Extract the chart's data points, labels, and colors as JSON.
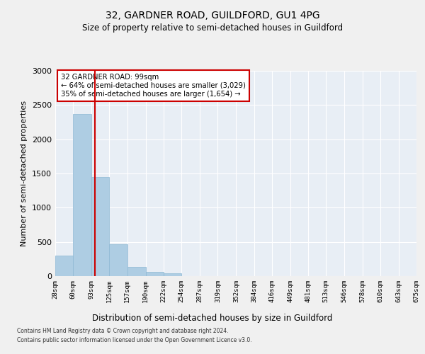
{
  "title": "32, GARDNER ROAD, GUILDFORD, GU1 4PG",
  "subtitle": "Size of property relative to semi-detached houses in Guildford",
  "xlabel": "Distribution of semi-detached houses by size in Guildford",
  "ylabel": "Number of semi-detached properties",
  "bar_color": "#aecde3",
  "bar_edge_color": "#8db8d4",
  "background_color": "#e8eef5",
  "grid_color": "#ffffff",
  "bin_edges": [
    28,
    60,
    93,
    125,
    157,
    190,
    222,
    254,
    287,
    319,
    352,
    384,
    416,
    449,
    481,
    513,
    546,
    578,
    610,
    643,
    675
  ],
  "bar_heights": [
    300,
    2370,
    1450,
    470,
    130,
    60,
    40,
    5,
    3,
    2,
    1,
    0,
    0,
    0,
    0,
    0,
    0,
    0,
    0,
    0
  ],
  "property_size": 99,
  "annotation_text": "32 GARDNER ROAD: 99sqm\n← 64% of semi-detached houses are smaller (3,029)\n35% of semi-detached houses are larger (1,654) →",
  "annotation_box_color": "#ffffff",
  "annotation_box_edge": "#cc0000",
  "vline_color": "#cc0000",
  "ylim": [
    0,
    3000
  ],
  "yticks": [
    0,
    500,
    1000,
    1500,
    2000,
    2500,
    3000
  ],
  "fig_facecolor": "#f0f0f0",
  "footnote1": "Contains HM Land Registry data © Crown copyright and database right 2024.",
  "footnote2": "Contains public sector information licensed under the Open Government Licence v3.0."
}
